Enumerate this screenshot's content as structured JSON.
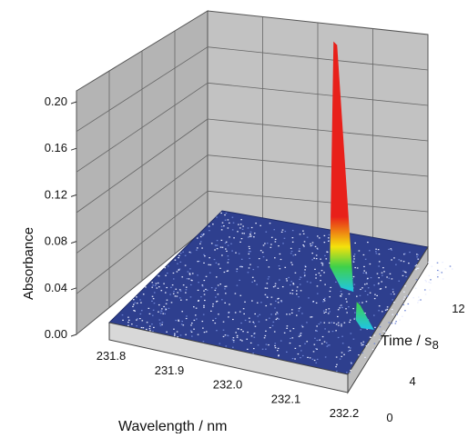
{
  "chart_data": {
    "type": "surface3d",
    "title": "",
    "xlabel": "Wavelength / nm",
    "ylabel": "Time / s",
    "zlabel": "Absorbance",
    "x_ticks": [
      "231.8",
      "231.9",
      "232.0",
      "232.1",
      "232.2"
    ],
    "y_ticks": [
      "0",
      "4",
      "8",
      "12"
    ],
    "z_ticks": [
      "0.00",
      "0.04",
      "0.08",
      "0.12",
      "0.16",
      "0.20"
    ],
    "xlim": [
      231.8,
      232.2
    ],
    "ylim": [
      0,
      14
    ],
    "zlim": [
      0,
      0.2
    ],
    "baseline_absorbance": 0.0,
    "peaks": [
      {
        "wavelength": 232.01,
        "time": 12.5,
        "absorbance": 0.18
      },
      {
        "wavelength": 232.13,
        "time": 6.5,
        "absorbance": 0.01
      }
    ],
    "colors": {
      "surface": "#2e3f8e",
      "wall": "#b8b8b8",
      "floor": "#d2d2d2",
      "peak_top": "#e8201a",
      "peak_mid": "#f4e20c",
      "peak_low": "#20c4e8"
    },
    "grid": true
  }
}
